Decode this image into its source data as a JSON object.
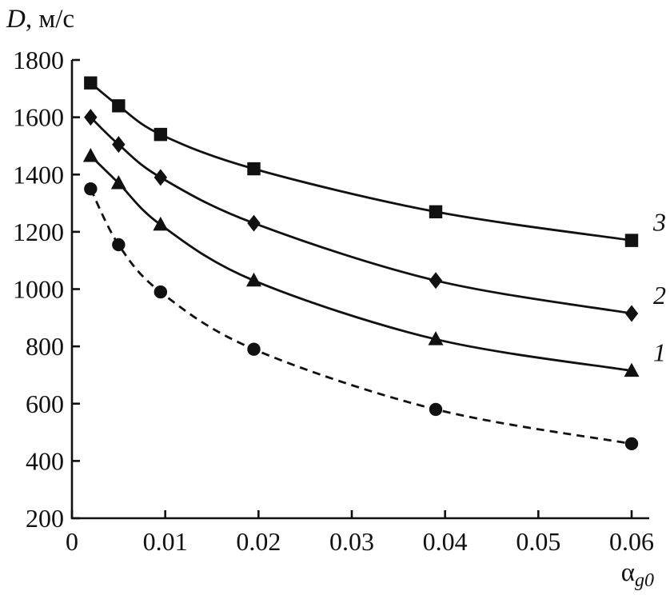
{
  "chart_data": {
    "type": "line",
    "title_var": "D",
    "title_rest": ", м/с",
    "xlabel_main": "α",
    "xlabel_sub": "g0",
    "ylabel": "D, м/с",
    "xlim": [
      0,
      0.062
    ],
    "ylim": [
      200,
      1800
    ],
    "grid": false,
    "legend_position": "labels-at-right-of-curves",
    "x_ticks": [
      0,
      0.01,
      0.02,
      0.03,
      0.04,
      0.05,
      0.06
    ],
    "x_tick_labels": [
      "0",
      "0.01",
      "0.02",
      "0.03",
      "0.04",
      "0.05",
      "0.06"
    ],
    "y_ticks": [
      200,
      400,
      600,
      800,
      1000,
      1200,
      1400,
      1600,
      1800
    ],
    "y_tick_labels": [
      "200",
      "400",
      "600",
      "800",
      "1000",
      "1200",
      "1400",
      "1600",
      "1800"
    ],
    "series": [
      {
        "name": "dashed-circles",
        "label": "",
        "marker": "circle",
        "dash": true,
        "x": [
          0.002,
          0.005,
          0.0095,
          0.0195,
          0.039,
          0.06
        ],
        "y": [
          1350,
          1155,
          990,
          790,
          580,
          460
        ]
      },
      {
        "name": "curve-1",
        "label": "1",
        "marker": "triangle",
        "dash": false,
        "x": [
          0.002,
          0.005,
          0.0095,
          0.0195,
          0.039,
          0.06
        ],
        "y": [
          1465,
          1370,
          1225,
          1030,
          825,
          715
        ]
      },
      {
        "name": "curve-2",
        "label": "2",
        "marker": "diamond",
        "dash": false,
        "x": [
          0.002,
          0.005,
          0.0095,
          0.0195,
          0.039,
          0.06
        ],
        "y": [
          1600,
          1505,
          1390,
          1230,
          1030,
          915
        ]
      },
      {
        "name": "curve-3",
        "label": "3",
        "marker": "square",
        "dash": false,
        "x": [
          0.002,
          0.005,
          0.0095,
          0.0195,
          0.039,
          0.06
        ],
        "y": [
          1720,
          1640,
          1540,
          1420,
          1270,
          1170
        ]
      }
    ],
    "line_color": "#111111"
  }
}
